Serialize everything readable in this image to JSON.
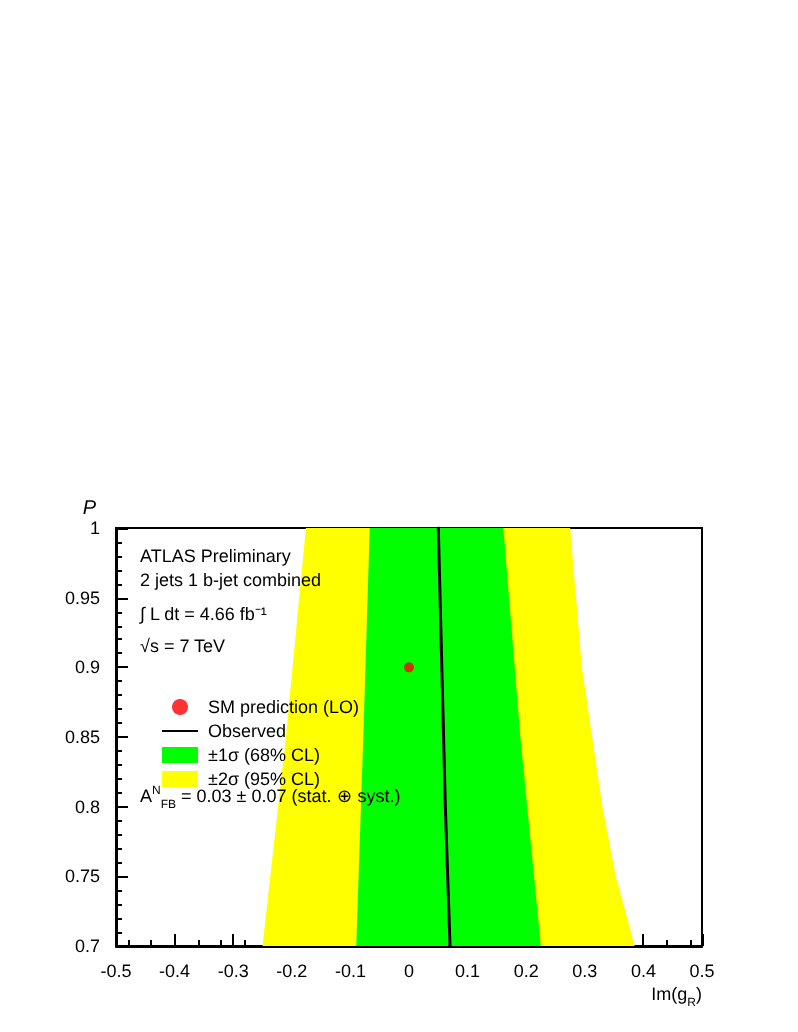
{
  "chart_data": {
    "type": "area",
    "xlabel": "Im(g$_{R}$)",
    "ylabel": "P",
    "annotations": [
      "ATLAS Preliminary",
      "2 jets 1 b-jet combined",
      "∫ L dt = 4.66 fb⁻¹",
      "√s = 7 TeV",
      "A$^{N}$$_{FB}$ = 0.03 ± 0.07 (stat. ⊕ syst.)"
    ],
    "series": [
      {
        "name": "±2σ (95% CL)",
        "color": "#ffff00",
        "x": [
          -0.176,
          0.275,
          0.295,
          0.33,
          0.353,
          0.385,
          -0.25,
          -0.21
        ],
        "values": [
          1,
          1,
          0.9,
          0.8,
          0.75,
          0.7,
          0.7,
          0.85
        ]
      },
      {
        "name": "±1σ (68% CL)",
        "color": "#00ff00",
        "x": [
          -0.067,
          0.161,
          0.19,
          0.225,
          -0.09,
          -0.078
        ],
        "values": [
          1,
          1,
          0.85,
          0.7,
          0.7,
          0.85
        ]
      },
      {
        "type": "line",
        "name": "Observed",
        "color": "#000000",
        "line_style": "solid",
        "x": [
          0.05,
          0.062,
          0.07
        ],
        "values": [
          1,
          0.8,
          0.7
        ]
      },
      {
        "type": "scatter",
        "name": "SM prediction (LO)",
        "color": "#ff0000",
        "marker": "circle",
        "x": [
          0
        ],
        "values": [
          0.9
        ]
      }
    ],
    "xlim": [
      -0.5,
      0.5
    ],
    "xticks": [
      -0.5,
      -0.4,
      -0.3,
      -0.2,
      -0.1,
      0,
      0.1,
      0.2,
      0.3,
      0.4,
      0.5
    ],
    "ylim": [
      0.7,
      1
    ],
    "yticks": [
      0.7,
      0.75,
      0.8,
      0.85,
      0.9,
      0.95,
      1
    ],
    "legend": "left"
  }
}
